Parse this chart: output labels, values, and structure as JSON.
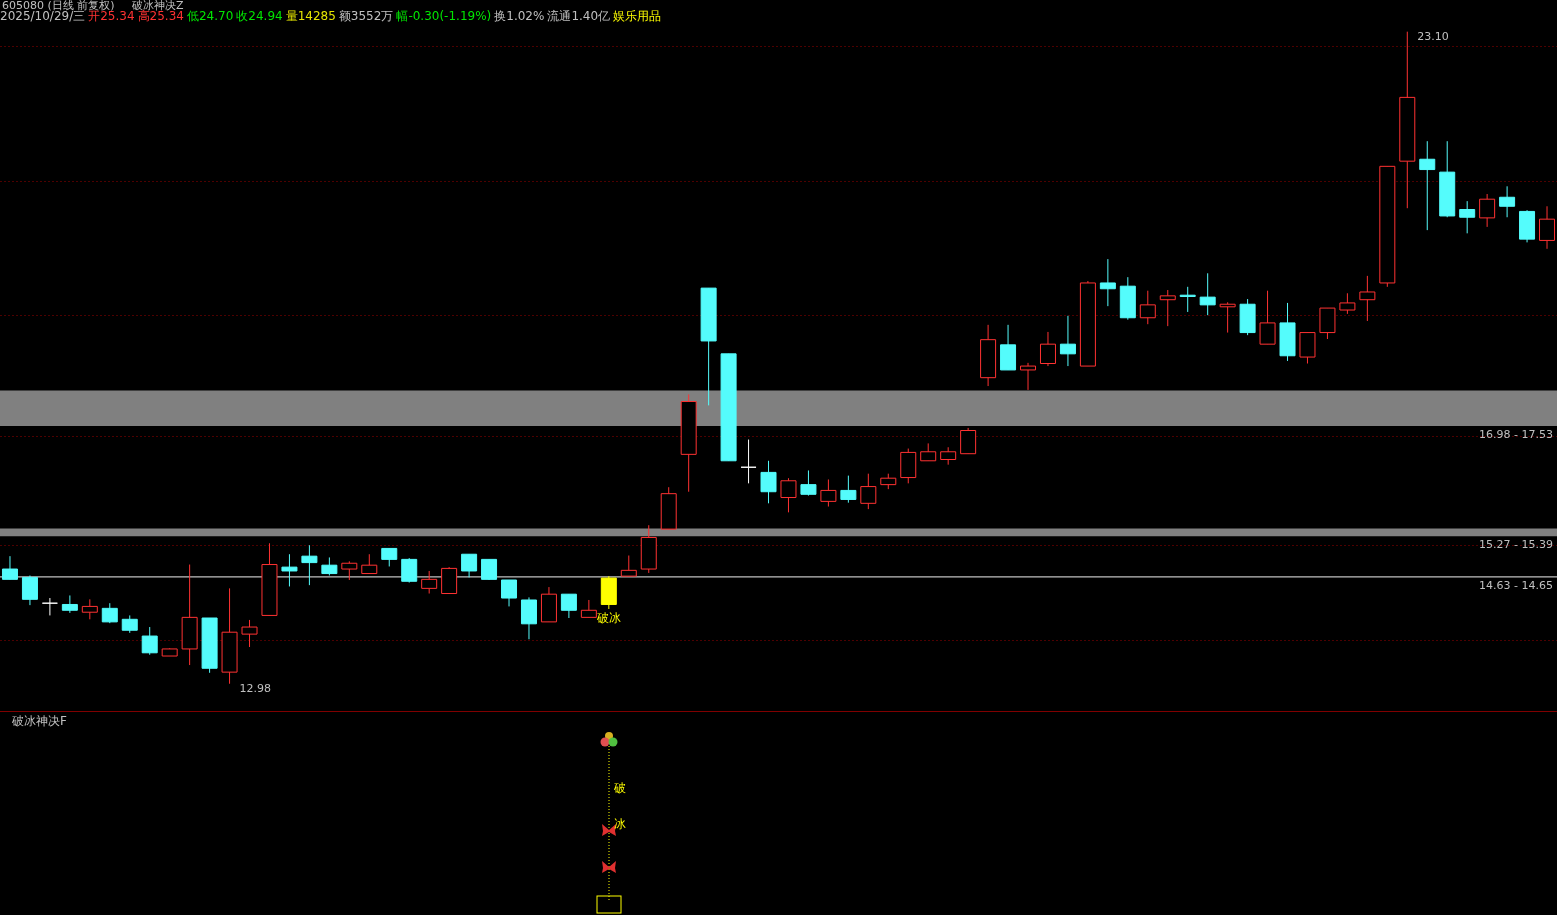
{
  "chart_data": {
    "type": "candlestick",
    "title": "605080 (日线 前复权)",
    "subtitle": "破冰神决Z",
    "categories": [
      null,
      null,
      null,
      null,
      null,
      null,
      null,
      null,
      null,
      null,
      null,
      null,
      null,
      null,
      null,
      null,
      null,
      null,
      null,
      null,
      null,
      null,
      null,
      null,
      null,
      null,
      null,
      null,
      null,
      null,
      null,
      null,
      null,
      null,
      null,
      null,
      null,
      null,
      null,
      null,
      null,
      null,
      null,
      null,
      null,
      null,
      null,
      null,
      null,
      null,
      null,
      null,
      null,
      null,
      null,
      null,
      null,
      null,
      null,
      null,
      null,
      null,
      null,
      null,
      null,
      null,
      null,
      null,
      null,
      null,
      null,
      null,
      null,
      null,
      null,
      null,
      null,
      null
    ],
    "ohlc": [
      [
        14.76,
        14.96,
        14.6,
        14.6
      ],
      [
        14.63,
        14.66,
        14.2,
        14.29
      ],
      [
        14.23,
        14.31,
        14.04,
        14.23
      ],
      [
        14.21,
        14.35,
        14.08,
        14.12
      ],
      [
        14.09,
        14.29,
        13.98,
        14.18
      ],
      [
        14.15,
        14.23,
        13.92,
        13.94
      ],
      [
        13.98,
        14.04,
        13.77,
        13.81
      ],
      [
        13.72,
        13.86,
        13.43,
        13.46
      ],
      [
        13.41,
        13.53,
        13.41,
        13.52
      ],
      [
        13.52,
        14.83,
        13.27,
        14.01
      ],
      [
        14.0,
        14.0,
        13.15,
        13.22
      ],
      [
        13.16,
        14.46,
        12.98,
        13.78
      ],
      [
        13.75,
        13.97,
        13.55,
        13.86
      ],
      [
        14.04,
        15.16,
        14.04,
        14.83
      ],
      [
        14.79,
        14.99,
        14.49,
        14.73
      ],
      [
        14.96,
        15.13,
        14.51,
        14.86
      ],
      [
        14.82,
        14.94,
        14.66,
        14.69
      ],
      [
        14.76,
        14.88,
        14.59,
        14.85
      ],
      [
        14.69,
        14.99,
        14.69,
        14.82
      ],
      [
        15.08,
        15.08,
        14.8,
        14.91
      ],
      [
        14.91,
        14.93,
        14.55,
        14.57
      ],
      [
        14.46,
        14.73,
        14.38,
        14.6
      ],
      [
        14.38,
        14.79,
        14.38,
        14.77
      ],
      [
        14.99,
        14.99,
        14.63,
        14.73
      ],
      [
        14.91,
        14.91,
        14.59,
        14.6
      ],
      [
        14.59,
        14.59,
        14.18,
        14.31
      ],
      [
        14.28,
        14.32,
        13.67,
        13.91
      ],
      [
        13.94,
        14.48,
        13.94,
        14.37
      ],
      [
        14.37,
        14.37,
        14.0,
        14.12
      ],
      [
        14.01,
        14.28,
        14.01,
        14.12
      ],
      [
        14.62,
        14.65,
        14.14,
        14.21
      ],
      [
        14.65,
        14.97,
        14.65,
        14.74
      ],
      [
        14.76,
        15.44,
        14.7,
        15.25
      ],
      [
        15.38,
        16.03,
        15.38,
        15.93
      ],
      [
        16.54,
        17.47,
        15.96,
        17.36
      ],
      [
        19.12,
        19.12,
        17.3,
        18.3
      ],
      [
        18.1,
        18.1,
        16.44,
        16.44
      ],
      [
        16.34,
        16.77,
        16.09,
        16.34
      ],
      [
        16.26,
        16.44,
        15.78,
        15.96
      ],
      [
        15.87,
        16.17,
        15.64,
        16.13
      ],
      [
        16.07,
        16.29,
        15.9,
        15.92
      ],
      [
        15.81,
        16.15,
        15.73,
        15.98
      ],
      [
        15.98,
        16.21,
        15.79,
        15.84
      ],
      [
        15.78,
        16.24,
        15.69,
        16.04
      ],
      [
        16.07,
        16.24,
        16.0,
        16.17
      ],
      [
        16.18,
        16.63,
        16.09,
        16.57
      ],
      [
        16.44,
        16.71,
        16.44,
        16.58
      ],
      [
        16.46,
        16.65,
        16.38,
        16.58
      ],
      [
        16.55,
        16.95,
        16.55,
        16.91
      ],
      [
        17.73,
        18.55,
        17.6,
        18.32
      ],
      [
        18.24,
        18.55,
        17.85,
        17.85
      ],
      [
        17.85,
        17.96,
        17.54,
        17.91
      ],
      [
        17.95,
        18.44,
        17.91,
        18.25
      ],
      [
        18.25,
        18.69,
        17.91,
        18.1
      ],
      [
        17.91,
        19.23,
        17.91,
        19.2
      ],
      [
        19.2,
        19.57,
        18.84,
        19.11
      ],
      [
        19.15,
        19.29,
        18.63,
        18.66
      ],
      [
        18.66,
        19.08,
        18.56,
        18.86
      ],
      [
        18.94,
        19.09,
        18.53,
        19.0
      ],
      [
        19.01,
        19.14,
        18.75,
        18.99
      ],
      [
        18.98,
        19.35,
        18.7,
        18.86
      ],
      [
        18.83,
        18.9,
        18.43,
        18.87
      ],
      [
        18.87,
        18.95,
        18.39,
        18.43
      ],
      [
        18.25,
        19.08,
        18.25,
        18.58
      ],
      [
        18.58,
        18.89,
        17.99,
        18.07
      ],
      [
        18.05,
        18.43,
        17.95,
        18.43
      ],
      [
        18.43,
        18.81,
        18.33,
        18.81
      ],
      [
        18.78,
        19.04,
        18.72,
        18.89
      ],
      [
        18.94,
        19.31,
        18.61,
        19.06
      ],
      [
        19.2,
        21.01,
        19.14,
        21.01
      ],
      [
        21.09,
        23.1,
        20.36,
        22.08
      ],
      [
        21.12,
        21.4,
        20.02,
        20.96
      ],
      [
        20.92,
        21.4,
        20.22,
        20.24
      ],
      [
        20.34,
        20.47,
        19.97,
        20.22
      ],
      [
        20.21,
        20.58,
        20.07,
        20.5
      ],
      [
        20.53,
        20.7,
        20.22,
        20.39
      ],
      [
        20.31,
        20.33,
        19.83,
        19.88
      ],
      [
        19.86,
        20.39,
        19.73,
        20.19
      ]
    ],
    "colors": [
      "#54fcfc",
      "#54fcfc",
      "#ffffff",
      "#54fcfc",
      "#ff3232",
      "#54fcfc",
      "#54fcfc",
      "#54fcfc",
      "#ff3232",
      "#ff3232",
      "#54fcfc",
      "#ff3232",
      "#ff3232",
      "#ff3232",
      "#54fcfc",
      "#54fcfc",
      "#54fcfc",
      "#ff3232",
      "#ff3232",
      "#54fcfc",
      "#54fcfc",
      "#ff3232",
      "#ff3232",
      "#54fcfc",
      "#54fcfc",
      "#54fcfc",
      "#54fcfc",
      "#ff3232",
      "#54fcfc",
      "#ff3232",
      "#ffff00",
      "#ff3232",
      "#ff3232",
      "#ff3232",
      "#ff3232",
      "#54fcfc",
      "#54fcfc",
      "#ffffff",
      "#54fcfc",
      "#ff3232",
      "#54fcfc",
      "#ff3232",
      "#54fcfc",
      "#ff3232",
      "#ff3232",
      "#ff3232",
      "#ff3232",
      "#ff3232",
      "#ff3232",
      "#ff3232",
      "#54fcfc",
      "#ff3232",
      "#ff3232",
      "#54fcfc",
      "#ff3232",
      "#54fcfc",
      "#54fcfc",
      "#ff3232",
      "#ff3232",
      "#54fcfc",
      "#54fcfc",
      "#ff3232",
      "#54fcfc",
      "#ff3232",
      "#54fcfc",
      "#ff3232",
      "#ff3232",
      "#ff3232",
      "#ff3232",
      "#ff3232",
      "#ff3232",
      "#54fcfc",
      "#54fcfc",
      "#54fcfc",
      "#ff3232",
      "#54fcfc",
      "#54fcfc",
      "#ff3232"
    ],
    "ylim": [
      12.65,
      23.25
    ],
    "yticks": [
      {
        "value": 13.66,
        "label": null
      },
      {
        "value": 15.13,
        "label": null
      },
      {
        "value": 16.83,
        "label": null
      },
      {
        "value": 18.7,
        "label": null
      },
      {
        "value": 20.79,
        "label": null
      },
      {
        "value": 22.88,
        "label": null
      }
    ],
    "grid": "y",
    "tick_labels": false,
    "bands": [
      {
        "axis": "y",
        "from": 16.98,
        "to": 17.53,
        "label": "16.98 - 17.53",
        "color": "#808080"
      },
      {
        "axis": "y",
        "from": 15.27,
        "to": 15.39,
        "label": "15.27 - 15.39",
        "color": "#808080"
      },
      {
        "axis": "y",
        "from": 14.63,
        "to": 14.65,
        "label": "14.63 - 14.65",
        "color": "#c0c0c0"
      }
    ],
    "annotations": [
      "2025/10/29/三",
      "开25.34",
      "高25.34",
      "低24.70",
      "收24.94",
      "量14285",
      "额3552万",
      "幅-0.30(-1.19%)",
      "换1.02%",
      "流通1.40亿",
      "娱乐用品",
      "破冰",
      "破冰神决F",
      "破",
      "冰",
      "23.10",
      "12.98"
    ]
  }
}
